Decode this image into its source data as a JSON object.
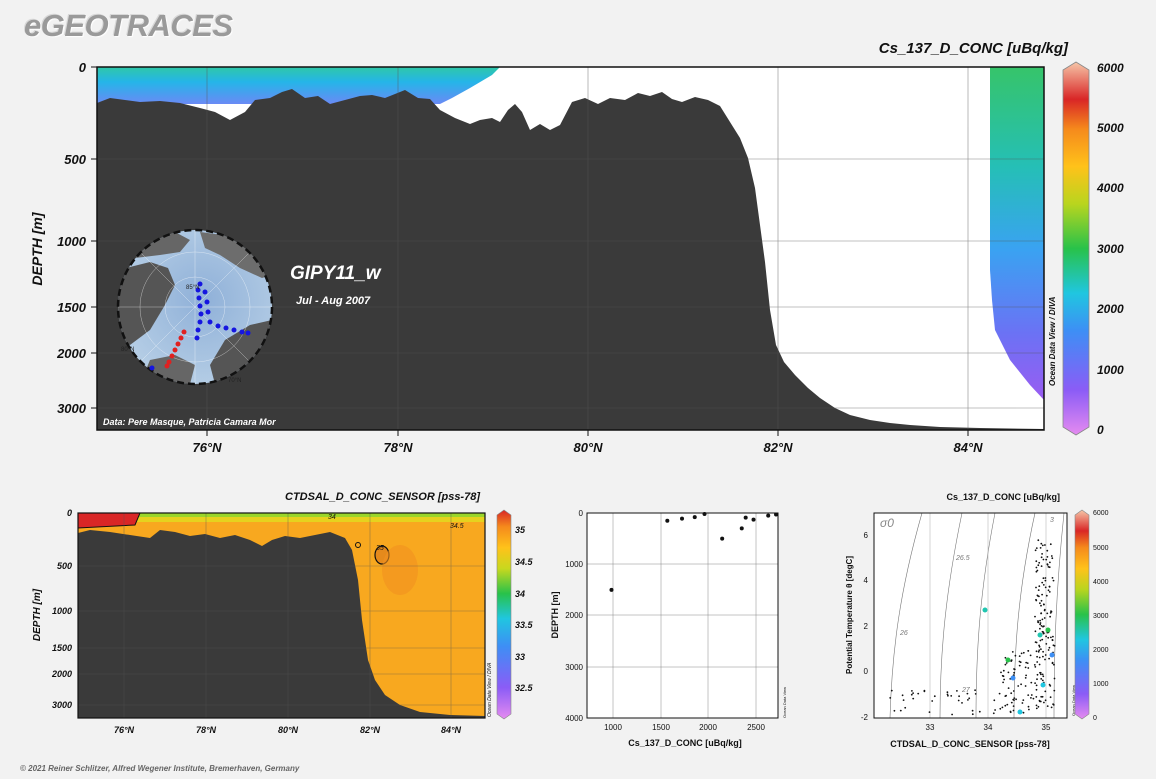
{
  "brand": "eGEOTRACES",
  "copyright": "© 2021 Reiner Schlitzer, Alfred Wegener Institute, Bremerhaven, Germany",
  "main_section": {
    "title": "Cs_137_D_CONC [uBq/kg]",
    "cruise": "GIPY11_w",
    "period": "Jul - Aug 2007",
    "credit": "Data: Pere Masque, Patricia Camara Mor",
    "odv_label": "Ocean Data View / DIVA",
    "ylabel": "DEPTH [m]",
    "y_ticks": [
      "0",
      "500",
      "1000",
      "1500",
      "2000",
      "3000"
    ],
    "x_ticks": [
      "76°N",
      "78°N",
      "80°N",
      "82°N",
      "84°N"
    ],
    "colorbar_ticks": [
      "6000",
      "5000",
      "4000",
      "3000",
      "2000",
      "1000",
      "0"
    ],
    "map_labels": [
      "85°N",
      "80°N",
      "70°N"
    ]
  },
  "sal_section": {
    "title": "CTDSAL_D_CONC_SENSOR [pss-78]",
    "ylabel": "DEPTH [m]",
    "odv_label": "Ocean Data View / DIVA",
    "y_ticks": [
      "0",
      "500",
      "1000",
      "1500",
      "2000",
      "3000"
    ],
    "x_ticks": [
      "76°N",
      "78°N",
      "80°N",
      "82°N",
      "84°N"
    ],
    "colorbar_ticks": [
      "35",
      "34.5",
      "34",
      "33.5",
      "33",
      "32.5"
    ],
    "contour_labels": [
      "34",
      "34.5",
      "35"
    ]
  },
  "profile": {
    "xlabel": "Cs_137_D_CONC [uBq/kg]",
    "ylabel": "DEPTH [m]",
    "odv_label": "Ocean Data View",
    "x_ticks": [
      "1000",
      "1500",
      "2000",
      "2500"
    ],
    "y_ticks": [
      "0",
      "1000",
      "2000",
      "3000",
      "4000"
    ]
  },
  "ts_plot": {
    "title": "Cs_137_D_CONC [uBq/kg]",
    "xlabel": "CTDSAL_D_CONC_SENSOR [pss-78]",
    "ylabel": "Potential Temperature θ [degC]",
    "sigma_label": "σ0",
    "odv_label": "Ocean Data View",
    "x_ticks": [
      "33",
      "34",
      "35"
    ],
    "y_ticks": [
      "6",
      "4",
      "2",
      "0",
      "-2"
    ],
    "iso_labels": [
      "26",
      "26.5",
      "27",
      "3"
    ],
    "colorbar_ticks": [
      "6000",
      "5000",
      "4000",
      "3000",
      "2000",
      "1000",
      "0"
    ]
  },
  "chart_data": [
    {
      "type": "heatmap",
      "title": "Cs_137_D_CONC [uBq/kg]",
      "ylabel": "DEPTH [m]",
      "x_range_degN": [
        74.8,
        84.8
      ],
      "y_range_m": [
        0,
        3300
      ],
      "colorbar_range": [
        0,
        6000
      ],
      "note": "section plot; water column colours shown where data present"
    },
    {
      "type": "heatmap",
      "title": "CTDSAL_D_CONC_SENSOR [pss-78]",
      "ylabel": "DEPTH [m]",
      "x_range_degN": [
        74.8,
        84.8
      ],
      "y_range_m": [
        0,
        3300
      ],
      "colorbar_range": [
        32.3,
        35.2
      ]
    },
    {
      "type": "scatter",
      "xlabel": "Cs_137_D_CONC [uBq/kg]",
      "ylabel": "DEPTH [m]",
      "xlim": [
        750,
        2700
      ],
      "ylim": [
        0,
        4000
      ],
      "points": [
        [
          1000,
          1500
        ],
        [
          1570,
          150
        ],
        [
          1720,
          110
        ],
        [
          1850,
          80
        ],
        [
          1950,
          20
        ],
        [
          2130,
          500
        ],
        [
          2330,
          300
        ],
        [
          2370,
          90
        ],
        [
          2450,
          130
        ],
        [
          2600,
          50
        ],
        [
          2680,
          30
        ]
      ]
    },
    {
      "type": "scatter",
      "title": "Cs_137_D_CONC [uBq/kg]",
      "xlabel": "CTDSAL_D_CONC_SENSOR [pss-78]",
      "ylabel": "Potential Temperature θ [degC]",
      "xlim": [
        32.1,
        35.3
      ],
      "ylim": [
        -2.1,
        7
      ]
    }
  ]
}
